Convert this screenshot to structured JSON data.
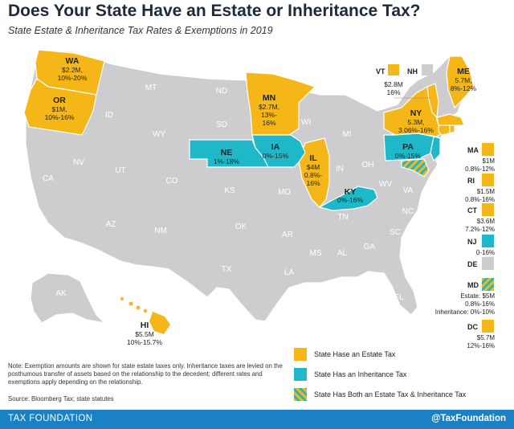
{
  "title": "Does Your State Have an Estate or Inheritance Tax?",
  "subtitle": "State Estate & Inheritance Tax Rates & Exemptions in 2019",
  "colors": {
    "estate": "#f5b718",
    "inheritance": "#1fb8c9",
    "none": "#cdcdcf",
    "border": "#ffffff",
    "footer": "#1a82c4"
  },
  "states": {
    "WA": {
      "label": "WA",
      "lines": [
        "$2.2M,",
        "10%-20%"
      ]
    },
    "OR": {
      "label": "OR",
      "lines": [
        "$1M,",
        "10%-16%"
      ]
    },
    "MN": {
      "label": "MN",
      "lines": [
        "$2.7M,",
        "13%-",
        "16%"
      ]
    },
    "NE": {
      "label": "NE",
      "lines": [
        "1%-18%"
      ]
    },
    "IA": {
      "label": "IA",
      "lines": [
        "0%-15%"
      ]
    },
    "IL": {
      "label": "IL",
      "lines": [
        "$4M",
        "0.8%-",
        "16%"
      ]
    },
    "KY": {
      "label": "KY",
      "lines": [
        "0%-16%"
      ]
    },
    "PA": {
      "label": "PA",
      "lines": [
        "0%-15%"
      ]
    },
    "NY": {
      "label": "NY",
      "lines": [
        "5.3M,",
        "3.06%-16%"
      ]
    },
    "ME": {
      "label": "ME",
      "lines": [
        "5.7M,",
        "8%-12%"
      ]
    },
    "HI": {
      "label": "HI",
      "lines": [
        "$5.5M",
        "10%-15.7%"
      ]
    },
    "VT": {
      "label": "VT",
      "lines": [
        "$2.8M",
        "16%"
      ]
    },
    "NH": {
      "label": "NH"
    }
  },
  "plain_labels": {
    "MT": "MT",
    "ID": "ID",
    "WY": "WY",
    "NV": "NV",
    "UT": "UT",
    "CO": "CO",
    "CA": "CA",
    "AZ": "AZ",
    "NM": "NM",
    "ND": "ND",
    "SD": "SD",
    "KS": "KS",
    "OK": "OK",
    "TX": "TX",
    "MO": "MO",
    "AR": "AR",
    "LA": "LA",
    "WI": "WI",
    "MI": "MI",
    "IN": "IN",
    "OH": "OH",
    "WV": "WV",
    "VA": "VA",
    "TN": "TN",
    "NC": "NC",
    "SC": "SC",
    "MS": "MS",
    "AL": "AL",
    "GA": "GA",
    "FL": "FL",
    "AK": "AK"
  },
  "sidebar": [
    {
      "label": "MA",
      "type": "estate",
      "lines": [
        "$1M",
        "0.8%-12%"
      ]
    },
    {
      "label": "RI",
      "type": "estate",
      "lines": [
        "$1.5M",
        "0.8%-16%"
      ]
    },
    {
      "label": "CT",
      "type": "estate",
      "lines": [
        "$3.6M",
        "7.2%-12%"
      ]
    },
    {
      "label": "NJ",
      "type": "inheritance",
      "lines": [
        "0-16%"
      ]
    },
    {
      "label": "DE",
      "type": "none",
      "lines": []
    },
    {
      "label": "MD",
      "type": "both",
      "lines": [
        "Estate: $5M",
        "0.8%-16%",
        "Inheritance: 0%-10%"
      ]
    },
    {
      "label": "DC",
      "type": "estate",
      "lines": [
        "$5.7M",
        "12%-16%"
      ]
    }
  ],
  "legend": {
    "estate": "State Hase an Estate Tax",
    "inheritance": "State Has an Inheritance Tax",
    "both": "State Has Both an Estate Tax & Inheritance Tax"
  },
  "note": "Note: Exemption amounts are shown for state estate taxes only. Inheritance taxes are levied on the posthumous transfer of assets based on the relationship to the decedent; different rates and exemptions apply depending on the relationship.",
  "source": "Source: Bloomberg Tax; state statutes",
  "footer": {
    "left": "TAX FOUNDATION",
    "right": "@TaxFoundation"
  }
}
